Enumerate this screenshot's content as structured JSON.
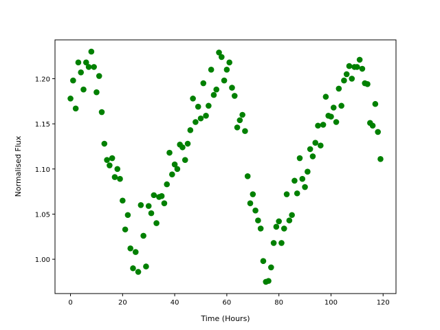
{
  "chart_data": {
    "type": "scatter",
    "xlabel": "Time (Hours)",
    "ylabel": "Normalised Flux",
    "series": [
      {
        "color": "#008000",
        "x": [
          0,
          1,
          2,
          3,
          4,
          5,
          6,
          7,
          8,
          9,
          10,
          11,
          12,
          13,
          14,
          15,
          16,
          17,
          18,
          19,
          20,
          21,
          22,
          23,
          24,
          25,
          26,
          27,
          28,
          29,
          30,
          31,
          32,
          33,
          34,
          35,
          36,
          37,
          38,
          39,
          40,
          41,
          42,
          43,
          44,
          45,
          46,
          47,
          48,
          49,
          50,
          51,
          52,
          53,
          54,
          55,
          56,
          57,
          58,
          59,
          60,
          61,
          62,
          63,
          64,
          65,
          66,
          67,
          68,
          69,
          70,
          71,
          72,
          73,
          74,
          75,
          76,
          77,
          78,
          79,
          80,
          81,
          82,
          83,
          84,
          85,
          86,
          87,
          88,
          89,
          90,
          91,
          92,
          93,
          94,
          95,
          96,
          97,
          98,
          99,
          100,
          101,
          102,
          103,
          104,
          105,
          106,
          107,
          108,
          109,
          110,
          111,
          112,
          113,
          114,
          115,
          116,
          117,
          118,
          119
        ],
        "values": [
          1.178,
          1.198,
          1.167,
          1.218,
          1.207,
          1.188,
          1.218,
          1.213,
          1.23,
          1.213,
          1.185,
          1.203,
          1.163,
          1.128,
          1.11,
          1.104,
          1.112,
          1.091,
          1.1,
          1.089,
          1.065,
          1.033,
          1.049,
          1.012,
          0.99,
          1.008,
          0.986,
          1.06,
          1.026,
          0.992,
          1.059,
          1.051,
          1.071,
          1.04,
          1.069,
          1.07,
          1.062,
          1.083,
          1.118,
          1.094,
          1.105,
          1.1,
          1.127,
          1.124,
          1.11,
          1.128,
          1.143,
          1.178,
          1.152,
          1.169,
          1.156,
          1.195,
          1.159,
          1.17,
          1.21,
          1.182,
          1.188,
          1.229,
          1.224,
          1.198,
          1.21,
          1.218,
          1.19,
          1.181,
          1.146,
          1.154,
          1.16,
          1.142,
          1.092,
          1.062,
          1.072,
          1.054,
          1.043,
          1.034,
          0.998,
          0.975,
          0.976,
          0.991,
          1.018,
          1.036,
          1.042,
          1.018,
          1.034,
          1.072,
          1.043,
          1.049,
          1.087,
          1.073,
          1.112,
          1.089,
          1.08,
          1.097,
          1.122,
          1.114,
          1.129,
          1.148,
          1.126,
          1.149,
          1.18,
          1.159,
          1.158,
          1.168,
          1.152,
          1.189,
          1.17,
          1.198,
          1.205,
          1.214,
          1.2,
          1.213,
          1.213,
          1.221,
          1.211,
          1.195,
          1.194,
          1.151,
          1.148,
          1.172,
          1.141,
          1.111
        ]
      }
    ],
    "xlim": [
      -5.95,
      124.95
    ],
    "xticks": [
      0,
      20,
      40,
      60,
      80,
      100,
      120
    ],
    "ylim": [
      0.962,
      1.243
    ],
    "yticks": [
      {
        "value": 1.0,
        "label": "1.00"
      },
      {
        "value": 1.05,
        "label": "1.05"
      },
      {
        "value": 1.1,
        "label": "1.10"
      },
      {
        "value": 1.15,
        "label": "1.15"
      },
      {
        "value": 1.2,
        "label": "1.20"
      }
    ]
  }
}
